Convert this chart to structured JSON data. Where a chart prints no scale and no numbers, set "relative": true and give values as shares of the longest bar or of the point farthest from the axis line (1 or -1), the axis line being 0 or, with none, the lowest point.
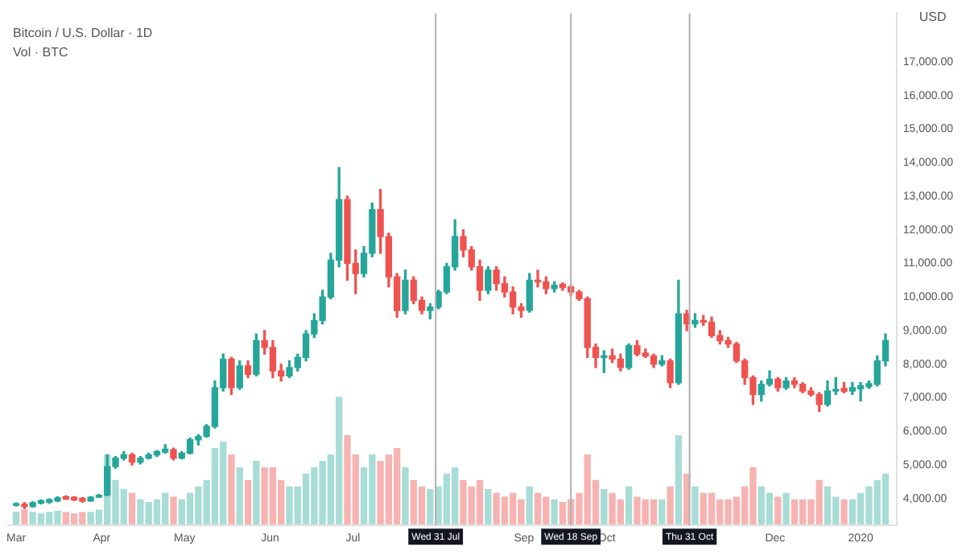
{
  "chart_data": [
    {
      "type": "candlestick",
      "title": "Bitcoin / U.S. Dollar · 1D",
      "ylabel": "USD",
      "grid": false,
      "legend": false,
      "xlim": [
        "2019-02-26",
        "2020-01-14"
      ],
      "xticks": [
        {
          "value": "2019-03-01",
          "label": "Mar"
        },
        {
          "value": "2019-04-01",
          "label": "Apr"
        },
        {
          "value": "2019-05-01",
          "label": "May"
        },
        {
          "value": "2019-06-01",
          "label": "Jun"
        },
        {
          "value": "2019-07-01",
          "label": "Jul"
        },
        {
          "value": "2019-09-01",
          "label": "Sep"
        },
        {
          "value": "2019-10-01",
          "label": "Oct"
        },
        {
          "value": "2019-12-01",
          "label": "Dec"
        },
        {
          "value": "2020-01-01",
          "label": "2020"
        }
      ],
      "ylim": [
        3200,
        18450
      ],
      "yticks": [
        {
          "value": 4000,
          "label": "4,000.00"
        },
        {
          "value": 5000,
          "label": "5,000.00"
        },
        {
          "value": 6000,
          "label": "6,000.00"
        },
        {
          "value": 7000,
          "label": "7,000.00"
        },
        {
          "value": 8000,
          "label": "8,000.00"
        },
        {
          "value": 9000,
          "label": "9,000.00"
        },
        {
          "value": 10000,
          "label": "10,000.00"
        },
        {
          "value": 11000,
          "label": "11,000.00"
        },
        {
          "value": 12000,
          "label": "12,000.00"
        },
        {
          "value": 13000,
          "label": "13,000.00"
        },
        {
          "value": 14000,
          "label": "14,000.00"
        },
        {
          "value": 15000,
          "label": "15,000.00"
        },
        {
          "value": 16000,
          "label": "16,000.00"
        },
        {
          "value": 17000,
          "label": "17,000.00"
        }
      ],
      "ref_lines": [
        {
          "axis": "x",
          "value": "2019-07-31",
          "label": "Wed 31 Jul",
          "color": "#b0b0b0"
        },
        {
          "axis": "x",
          "value": "2019-09-18",
          "label": "Wed 18 Sep",
          "color": "#b0b0b0"
        },
        {
          "axis": "x",
          "value": "2019-10-31",
          "label": "Thu 31 Oct",
          "color": "#b0b0b0"
        }
      ],
      "x": [
        "2019-03-01",
        "2019-03-04",
        "2019-03-07",
        "2019-03-10",
        "2019-03-13",
        "2019-03-16",
        "2019-03-19",
        "2019-03-22",
        "2019-03-25",
        "2019-03-28",
        "2019-03-31",
        "2019-04-03",
        "2019-04-06",
        "2019-04-09",
        "2019-04-12",
        "2019-04-15",
        "2019-04-18",
        "2019-04-21",
        "2019-04-24",
        "2019-04-27",
        "2019-04-30",
        "2019-05-03",
        "2019-05-06",
        "2019-05-09",
        "2019-05-12",
        "2019-05-15",
        "2019-05-18",
        "2019-05-21",
        "2019-05-24",
        "2019-05-27",
        "2019-05-30",
        "2019-06-02",
        "2019-06-05",
        "2019-06-08",
        "2019-06-11",
        "2019-06-14",
        "2019-06-17",
        "2019-06-20",
        "2019-06-23",
        "2019-06-26",
        "2019-06-29",
        "2019-07-02",
        "2019-07-05",
        "2019-07-08",
        "2019-07-11",
        "2019-07-14",
        "2019-07-17",
        "2019-07-20",
        "2019-07-23",
        "2019-07-26",
        "2019-07-29",
        "2019-08-01",
        "2019-08-04",
        "2019-08-07",
        "2019-08-10",
        "2019-08-13",
        "2019-08-16",
        "2019-08-19",
        "2019-08-22",
        "2019-08-25",
        "2019-08-28",
        "2019-08-31",
        "2019-09-03",
        "2019-09-06",
        "2019-09-09",
        "2019-09-12",
        "2019-09-15",
        "2019-09-18",
        "2019-09-21",
        "2019-09-24",
        "2019-09-27",
        "2019-09-30",
        "2019-10-03",
        "2019-10-06",
        "2019-10-09",
        "2019-10-12",
        "2019-10-15",
        "2019-10-18",
        "2019-10-21",
        "2019-10-24",
        "2019-10-27",
        "2019-10-30",
        "2019-11-02",
        "2019-11-05",
        "2019-11-08",
        "2019-11-11",
        "2019-11-14",
        "2019-11-17",
        "2019-11-20",
        "2019-11-23",
        "2019-11-26",
        "2019-11-29",
        "2019-12-02",
        "2019-12-05",
        "2019-12-08",
        "2019-12-11",
        "2019-12-14",
        "2019-12-17",
        "2019-12-20",
        "2019-12-23",
        "2019-12-26",
        "2019-12-29",
        "2020-01-01",
        "2020-01-04",
        "2020-01-07",
        "2020-01-10"
      ],
      "ohlc": [
        [
          3800,
          3870,
          3780,
          3850
        ],
        [
          3830,
          3880,
          3700,
          3760
        ],
        [
          3760,
          3900,
          3750,
          3880
        ],
        [
          3860,
          3960,
          3840,
          3940
        ],
        [
          3890,
          3990,
          3860,
          3970
        ],
        [
          3930,
          4050,
          3910,
          4020
        ],
        [
          4060,
          4080,
          3980,
          3980
        ],
        [
          4040,
          4060,
          3940,
          3960
        ],
        [
          4010,
          4030,
          3900,
          3920
        ],
        [
          3930,
          4060,
          3920,
          4040
        ],
        [
          4040,
          4120,
          4030,
          4100
        ],
        [
          4100,
          5300,
          4090,
          4950
        ],
        [
          4950,
          5250,
          4900,
          5200
        ],
        [
          5200,
          5400,
          5150,
          5300
        ],
        [
          5300,
          5350,
          5000,
          5080
        ],
        [
          5080,
          5250,
          5030,
          5200
        ],
        [
          5200,
          5350,
          5180,
          5300
        ],
        [
          5300,
          5430,
          5250,
          5400
        ],
        [
          5380,
          5600,
          5350,
          5470
        ],
        [
          5450,
          5500,
          5150,
          5200
        ],
        [
          5200,
          5400,
          5180,
          5350
        ],
        [
          5350,
          5800,
          5330,
          5750
        ],
        [
          5750,
          5900,
          5600,
          5850
        ],
        [
          5850,
          6200,
          5830,
          6150
        ],
        [
          6150,
          7500,
          6100,
          7300
        ],
        [
          7300,
          8300,
          7200,
          8150
        ],
        [
          8150,
          8200,
          7100,
          7300
        ],
        [
          7300,
          8100,
          7250,
          7950
        ],
        [
          7950,
          8100,
          7600,
          7700
        ],
        [
          7700,
          8900,
          7650,
          8700
        ],
        [
          8700,
          9000,
          8300,
          8500
        ],
        [
          8500,
          8700,
          7600,
          7800
        ],
        [
          7800,
          8000,
          7500,
          7650
        ],
        [
          7650,
          8100,
          7600,
          7900
        ],
        [
          7900,
          8300,
          7800,
          8200
        ],
        [
          8200,
          9000,
          8100,
          8900
        ],
        [
          8900,
          9500,
          8800,
          9300
        ],
        [
          9300,
          10200,
          9200,
          10000
        ],
        [
          10000,
          11300,
          9950,
          11100
        ],
        [
          11100,
          13850,
          10900,
          12900
        ],
        [
          12900,
          13000,
          10500,
          11000
        ],
        [
          11000,
          11400,
          10100,
          10700
        ],
        [
          10700,
          11500,
          10600,
          11300
        ],
        [
          11300,
          12800,
          11200,
          12600
        ],
        [
          12600,
          13200,
          11300,
          11800
        ],
        [
          11800,
          11900,
          10300,
          10600
        ],
        [
          10600,
          10700,
          9400,
          9600
        ],
        [
          9600,
          10800,
          9500,
          10500
        ],
        [
          10500,
          10600,
          9800,
          9900
        ],
        [
          9900,
          10000,
          9500,
          9600
        ],
        [
          9600,
          9800,
          9350,
          9700
        ],
        [
          9700,
          10200,
          9650,
          10150
        ],
        [
          10150,
          11000,
          10100,
          10900
        ],
        [
          10900,
          12300,
          10800,
          11800
        ],
        [
          11800,
          12000,
          11200,
          11400
        ],
        [
          11400,
          11500,
          10800,
          10900
        ],
        [
          10900,
          11100,
          9900,
          10200
        ],
        [
          10200,
          10900,
          10100,
          10800
        ],
        [
          10800,
          10900,
          10200,
          10400
        ],
        [
          10400,
          10600,
          10000,
          10150
        ],
        [
          10150,
          10300,
          9500,
          9700
        ],
        [
          9700,
          9800,
          9400,
          9600
        ],
        [
          9600,
          10700,
          9550,
          10500
        ],
        [
          10500,
          10800,
          10300,
          10450
        ],
        [
          10450,
          10600,
          10100,
          10250
        ],
        [
          10250,
          10450,
          10150,
          10350
        ],
        [
          10380,
          10420,
          10200,
          10280
        ],
        [
          10300,
          10350,
          10050,
          10150
        ],
        [
          10150,
          10200,
          9900,
          9950
        ],
        [
          9950,
          10000,
          8200,
          8500
        ],
        [
          8500,
          8600,
          7900,
          8200
        ],
        [
          8200,
          8400,
          7750,
          8250
        ],
        [
          8250,
          8450,
          8050,
          8150
        ],
        [
          8150,
          8300,
          7800,
          7900
        ],
        [
          7900,
          8600,
          7850,
          8550
        ],
        [
          8550,
          8700,
          8250,
          8300
        ],
        [
          8330,
          8450,
          8200,
          8240
        ],
        [
          8250,
          8300,
          7900,
          8000
        ],
        [
          8000,
          8250,
          7950,
          8100
        ],
        [
          8100,
          8150,
          7300,
          7450
        ],
        [
          7450,
          10500,
          7400,
          9500
        ],
        [
          9500,
          9600,
          9000,
          9200
        ],
        [
          9200,
          9500,
          9100,
          9300
        ],
        [
          9300,
          9450,
          9150,
          9250
        ],
        [
          9250,
          9400,
          8800,
          8850
        ],
        [
          8850,
          9000,
          8600,
          8700
        ],
        [
          8700,
          8800,
          8500,
          8600
        ],
        [
          8600,
          8650,
          8050,
          8100
        ],
        [
          8100,
          8150,
          7400,
          7600
        ],
        [
          7600,
          7650,
          6800,
          7100
        ],
        [
          7100,
          7500,
          6900,
          7400
        ],
        [
          7400,
          7800,
          7350,
          7550
        ],
        [
          7550,
          7600,
          7200,
          7300
        ],
        [
          7300,
          7600,
          7250,
          7500
        ],
        [
          7500,
          7600,
          7300,
          7400
        ],
        [
          7400,
          7450,
          7150,
          7200
        ],
        [
          7200,
          7300,
          7050,
          7100
        ],
        [
          7100,
          7150,
          6600,
          6800
        ],
        [
          6800,
          7500,
          6750,
          7200
        ],
        [
          7200,
          7600,
          7100,
          7250
        ],
        [
          7280,
          7450,
          7150,
          7190
        ],
        [
          7200,
          7450,
          7100,
          7300
        ],
        [
          7270,
          7450,
          6900,
          7360
        ],
        [
          7330,
          7500,
          7280,
          7420
        ],
        [
          7400,
          8250,
          7350,
          8100
        ],
        [
          8100,
          8900,
          7950,
          8700
        ]
      ],
      "colors": [
        "#26a69a",
        "#ef5350",
        "#26a69a",
        "#26a69a",
        "#26a69a",
        "#26a69a",
        "#ef5350",
        "#ef5350",
        "#ef5350",
        "#26a69a",
        "#26a69a",
        "#26a69a",
        "#26a69a",
        "#26a69a",
        "#ef5350",
        "#26a69a",
        "#26a69a",
        "#26a69a",
        "#26a69a",
        "#ef5350",
        "#26a69a",
        "#26a69a",
        "#26a69a",
        "#26a69a",
        "#26a69a",
        "#26a69a",
        "#ef5350",
        "#26a69a",
        "#ef5350",
        "#26a69a",
        "#ef5350",
        "#ef5350",
        "#ef5350",
        "#26a69a",
        "#26a69a",
        "#26a69a",
        "#26a69a",
        "#26a69a",
        "#26a69a",
        "#26a69a",
        "#ef5350",
        "#ef5350",
        "#26a69a",
        "#26a69a",
        "#ef5350",
        "#ef5350",
        "#ef5350",
        "#26a69a",
        "#ef5350",
        "#ef5350",
        "#26a69a",
        "#26a69a",
        "#26a69a",
        "#26a69a",
        "#ef5350",
        "#ef5350",
        "#ef5350",
        "#26a69a",
        "#ef5350",
        "#ef5350",
        "#ef5350",
        "#ef5350",
        "#26a69a",
        "#ef5350",
        "#ef5350",
        "#26a69a",
        "#ef5350",
        "#ef5350",
        "#ef5350",
        "#ef5350",
        "#ef5350",
        "#26a69a",
        "#ef5350",
        "#ef5350",
        "#26a69a",
        "#ef5350",
        "#ef5350",
        "#ef5350",
        "#26a69a",
        "#ef5350",
        "#26a69a",
        "#ef5350",
        "#26a69a",
        "#ef5350",
        "#ef5350",
        "#ef5350",
        "#ef5350",
        "#ef5350",
        "#ef5350",
        "#ef5350",
        "#26a69a",
        "#26a69a",
        "#ef5350",
        "#26a69a",
        "#ef5350",
        "#ef5350",
        "#ef5350",
        "#ef5350",
        "#26a69a",
        "#26a69a",
        "#ef5350",
        "#26a69a",
        "#26a69a",
        "#26a69a",
        "#26a69a",
        "#26a69a"
      ]
    },
    {
      "type": "bar",
      "title": "Vol · BTC",
      "relative": true,
      "tick_labels": false,
      "xlim": [
        "2019-02-26",
        "2020-01-14"
      ],
      "legend": false,
      "grid": false,
      "x": [
        "2019-03-01",
        "2019-03-04",
        "2019-03-07",
        "2019-03-10",
        "2019-03-13",
        "2019-03-16",
        "2019-03-19",
        "2019-03-22",
        "2019-03-25",
        "2019-03-28",
        "2019-03-31",
        "2019-04-03",
        "2019-04-06",
        "2019-04-09",
        "2019-04-12",
        "2019-04-15",
        "2019-04-18",
        "2019-04-21",
        "2019-04-24",
        "2019-04-27",
        "2019-04-30",
        "2019-05-03",
        "2019-05-06",
        "2019-05-09",
        "2019-05-12",
        "2019-05-15",
        "2019-05-18",
        "2019-05-21",
        "2019-05-24",
        "2019-05-27",
        "2019-05-30",
        "2019-06-02",
        "2019-06-05",
        "2019-06-08",
        "2019-06-11",
        "2019-06-14",
        "2019-06-17",
        "2019-06-20",
        "2019-06-23",
        "2019-06-26",
        "2019-06-29",
        "2019-07-02",
        "2019-07-05",
        "2019-07-08",
        "2019-07-11",
        "2019-07-14",
        "2019-07-17",
        "2019-07-20",
        "2019-07-23",
        "2019-07-26",
        "2019-07-29",
        "2019-08-01",
        "2019-08-04",
        "2019-08-07",
        "2019-08-10",
        "2019-08-13",
        "2019-08-16",
        "2019-08-19",
        "2019-08-22",
        "2019-08-25",
        "2019-08-28",
        "2019-08-31",
        "2019-09-03",
        "2019-09-06",
        "2019-09-09",
        "2019-09-12",
        "2019-09-15",
        "2019-09-18",
        "2019-09-21",
        "2019-09-24",
        "2019-09-27",
        "2019-09-30",
        "2019-10-03",
        "2019-10-06",
        "2019-10-09",
        "2019-10-12",
        "2019-10-15",
        "2019-10-18",
        "2019-10-21",
        "2019-10-24",
        "2019-10-27",
        "2019-10-30",
        "2019-11-02",
        "2019-11-05",
        "2019-11-08",
        "2019-11-11",
        "2019-11-14",
        "2019-11-17",
        "2019-11-20",
        "2019-11-23",
        "2019-11-26",
        "2019-11-29",
        "2019-12-02",
        "2019-12-05",
        "2019-12-08",
        "2019-12-11",
        "2019-12-14",
        "2019-12-17",
        "2019-12-20",
        "2019-12-23",
        "2019-12-26",
        "2019-12-29",
        "2020-01-01",
        "2020-01-04",
        "2020-01-07",
        "2020-01-10"
      ],
      "values": [
        0.1,
        0.12,
        0.1,
        0.09,
        0.1,
        0.11,
        0.1,
        0.09,
        0.1,
        0.1,
        0.12,
        0.55,
        0.35,
        0.28,
        0.25,
        0.2,
        0.18,
        0.2,
        0.25,
        0.22,
        0.2,
        0.25,
        0.3,
        0.35,
        0.6,
        0.65,
        0.55,
        0.45,
        0.35,
        0.5,
        0.45,
        0.45,
        0.35,
        0.3,
        0.3,
        0.4,
        0.45,
        0.5,
        0.55,
        1,
        0.7,
        0.55,
        0.45,
        0.55,
        0.5,
        0.55,
        0.6,
        0.45,
        0.35,
        0.3,
        0.28,
        0.3,
        0.4,
        0.45,
        0.35,
        0.3,
        0.35,
        0.28,
        0.25,
        0.22,
        0.25,
        0.2,
        0.3,
        0.25,
        0.22,
        0.2,
        0.18,
        0.2,
        0.25,
        0.55,
        0.35,
        0.28,
        0.25,
        0.2,
        0.3,
        0.22,
        0.2,
        0.2,
        0.2,
        0.3,
        0.7,
        0.4,
        0.3,
        0.25,
        0.25,
        0.2,
        0.2,
        0.22,
        0.3,
        0.45,
        0.3,
        0.25,
        0.22,
        0.25,
        0.2,
        0.2,
        0.2,
        0.35,
        0.3,
        0.22,
        0.2,
        0.2,
        0.25,
        0.3,
        0.35,
        0.4
      ],
      "colors": [
        "#a8dcd6",
        "#f6b3b1",
        "#a8dcd6",
        "#a8dcd6",
        "#a8dcd6",
        "#a8dcd6",
        "#f6b3b1",
        "#f6b3b1",
        "#f6b3b1",
        "#a8dcd6",
        "#a8dcd6",
        "#a8dcd6",
        "#a8dcd6",
        "#a8dcd6",
        "#f6b3b1",
        "#a8dcd6",
        "#a8dcd6",
        "#a8dcd6",
        "#a8dcd6",
        "#f6b3b1",
        "#a8dcd6",
        "#a8dcd6",
        "#a8dcd6",
        "#a8dcd6",
        "#a8dcd6",
        "#a8dcd6",
        "#f6b3b1",
        "#a8dcd6",
        "#f6b3b1",
        "#a8dcd6",
        "#f6b3b1",
        "#f6b3b1",
        "#f6b3b1",
        "#a8dcd6",
        "#a8dcd6",
        "#a8dcd6",
        "#a8dcd6",
        "#a8dcd6",
        "#a8dcd6",
        "#a8dcd6",
        "#f6b3b1",
        "#f6b3b1",
        "#a8dcd6",
        "#a8dcd6",
        "#f6b3b1",
        "#f6b3b1",
        "#f6b3b1",
        "#a8dcd6",
        "#f6b3b1",
        "#f6b3b1",
        "#a8dcd6",
        "#a8dcd6",
        "#a8dcd6",
        "#a8dcd6",
        "#f6b3b1",
        "#f6b3b1",
        "#f6b3b1",
        "#a8dcd6",
        "#f6b3b1",
        "#f6b3b1",
        "#f6b3b1",
        "#f6b3b1",
        "#a8dcd6",
        "#f6b3b1",
        "#f6b3b1",
        "#a8dcd6",
        "#f6b3b1",
        "#f6b3b1",
        "#f6b3b1",
        "#f6b3b1",
        "#f6b3b1",
        "#a8dcd6",
        "#f6b3b1",
        "#f6b3b1",
        "#a8dcd6",
        "#f6b3b1",
        "#f6b3b1",
        "#f6b3b1",
        "#a8dcd6",
        "#f6b3b1",
        "#a8dcd6",
        "#f6b3b1",
        "#a8dcd6",
        "#f6b3b1",
        "#f6b3b1",
        "#f6b3b1",
        "#f6b3b1",
        "#f6b3b1",
        "#f6b3b1",
        "#f6b3b1",
        "#a8dcd6",
        "#a8dcd6",
        "#f6b3b1",
        "#a8dcd6",
        "#f6b3b1",
        "#f6b3b1",
        "#f6b3b1",
        "#f6b3b1",
        "#a8dcd6",
        "#a8dcd6",
        "#f6b3b1",
        "#a8dcd6",
        "#a8dcd6",
        "#a8dcd6",
        "#a8dcd6",
        "#a8dcd6"
      ]
    }
  ]
}
